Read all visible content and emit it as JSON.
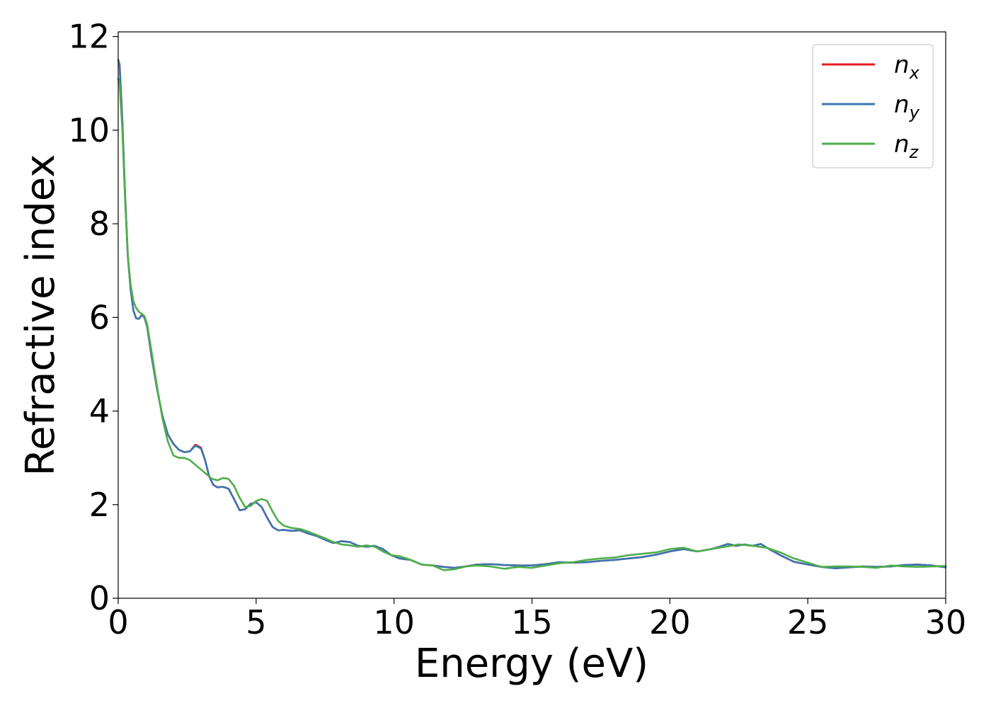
{
  "chart_data": {
    "type": "line",
    "title": "",
    "xlabel": "Energy (eV)",
    "ylabel": "Refractive index",
    "xlim": [
      0,
      30
    ],
    "ylim": [
      0,
      12.1
    ],
    "xticks": [
      0,
      5,
      10,
      15,
      20,
      25,
      30
    ],
    "yticks": [
      0,
      2,
      4,
      6,
      8,
      10,
      12
    ],
    "grid": false,
    "legend_position": "top-right",
    "series": [
      {
        "name": "n_x",
        "legend_base": "n",
        "legend_sub": "x",
        "color": "#e41a1c",
        "x": [
          0,
          0.05,
          0.15,
          0.25,
          0.35,
          0.45,
          0.55,
          0.65,
          0.75,
          0.85,
          0.95,
          1.05,
          1.2,
          1.4,
          1.6,
          1.8,
          2.0,
          2.2,
          2.4,
          2.6,
          2.8,
          3.0,
          3.15,
          3.3,
          3.45,
          3.6,
          3.8,
          4.0,
          4.2,
          4.4,
          4.6,
          4.8,
          5.0,
          5.2,
          5.4,
          5.6,
          5.8,
          6.0,
          6.3,
          6.6,
          6.9,
          7.2,
          7.5,
          7.8,
          8.1,
          8.4,
          8.7,
          9.0,
          9.3,
          9.6,
          9.9,
          10.2,
          10.6,
          11.0,
          11.4,
          11.8,
          12.2,
          12.6,
          13.0,
          13.5,
          14.0,
          14.5,
          15.0,
          15.5,
          16.0,
          16.5,
          17.0,
          17.5,
          18.0,
          18.5,
          19.0,
          19.5,
          20.0,
          20.5,
          21.0,
          21.5,
          21.8,
          22.1,
          22.4,
          22.7,
          23.0,
          23.3,
          23.6,
          24.0,
          24.5,
          25.0,
          25.5,
          26.0,
          26.5,
          27.0,
          27.5,
          28.0,
          28.5,
          29.0,
          29.5,
          30.0
        ],
        "y": [
          11.5,
          11.4,
          10.2,
          8.6,
          7.3,
          6.6,
          6.15,
          5.98,
          5.97,
          6.05,
          6.0,
          5.8,
          5.2,
          4.5,
          3.9,
          3.5,
          3.3,
          3.17,
          3.12,
          3.14,
          3.28,
          3.22,
          2.95,
          2.6,
          2.42,
          2.37,
          2.38,
          2.34,
          2.12,
          1.88,
          1.9,
          2.02,
          2.05,
          1.95,
          1.72,
          1.52,
          1.45,
          1.46,
          1.44,
          1.45,
          1.38,
          1.33,
          1.25,
          1.18,
          1.22,
          1.2,
          1.12,
          1.1,
          1.12,
          1.05,
          0.92,
          0.85,
          0.82,
          0.72,
          0.7,
          0.67,
          0.65,
          0.68,
          0.72,
          0.73,
          0.71,
          0.7,
          0.7,
          0.73,
          0.77,
          0.76,
          0.77,
          0.8,
          0.82,
          0.85,
          0.88,
          0.93,
          1.0,
          1.05,
          1.0,
          1.05,
          1.1,
          1.16,
          1.12,
          1.15,
          1.12,
          1.16,
          1.05,
          0.92,
          0.78,
          0.72,
          0.67,
          0.64,
          0.66,
          0.68,
          0.67,
          0.68,
          0.71,
          0.72,
          0.7,
          0.66
        ]
      },
      {
        "name": "n_y",
        "legend_base": "n",
        "legend_sub": "y",
        "color": "#3a75b0",
        "x": [
          0,
          0.05,
          0.15,
          0.25,
          0.35,
          0.45,
          0.55,
          0.65,
          0.75,
          0.85,
          0.95,
          1.05,
          1.2,
          1.4,
          1.6,
          1.8,
          2.0,
          2.2,
          2.4,
          2.6,
          2.8,
          3.0,
          3.15,
          3.3,
          3.45,
          3.6,
          3.8,
          4.0,
          4.2,
          4.4,
          4.6,
          4.8,
          5.0,
          5.2,
          5.4,
          5.6,
          5.8,
          6.0,
          6.3,
          6.6,
          6.9,
          7.2,
          7.5,
          7.8,
          8.1,
          8.4,
          8.7,
          9.0,
          9.3,
          9.6,
          9.9,
          10.2,
          10.6,
          11.0,
          11.4,
          11.8,
          12.2,
          12.6,
          13.0,
          13.5,
          14.0,
          14.5,
          15.0,
          15.5,
          16.0,
          16.5,
          17.0,
          17.5,
          18.0,
          18.5,
          19.0,
          19.5,
          20.0,
          20.5,
          21.0,
          21.5,
          21.8,
          22.1,
          22.4,
          22.7,
          23.0,
          23.3,
          23.6,
          24.0,
          24.5,
          25.0,
          25.5,
          26.0,
          26.5,
          27.0,
          27.5,
          28.0,
          28.5,
          29.0,
          29.5,
          30.0
        ],
        "y": [
          11.5,
          11.4,
          10.2,
          8.6,
          7.3,
          6.6,
          6.15,
          5.98,
          5.97,
          6.05,
          6.0,
          5.8,
          5.2,
          4.5,
          3.9,
          3.5,
          3.3,
          3.17,
          3.12,
          3.14,
          3.26,
          3.2,
          2.95,
          2.6,
          2.42,
          2.37,
          2.38,
          2.34,
          2.12,
          1.88,
          1.9,
          2.02,
          2.05,
          1.95,
          1.72,
          1.52,
          1.45,
          1.46,
          1.44,
          1.45,
          1.38,
          1.33,
          1.25,
          1.18,
          1.22,
          1.2,
          1.12,
          1.1,
          1.12,
          1.05,
          0.92,
          0.85,
          0.82,
          0.72,
          0.7,
          0.67,
          0.65,
          0.68,
          0.72,
          0.73,
          0.71,
          0.7,
          0.7,
          0.73,
          0.77,
          0.76,
          0.77,
          0.8,
          0.82,
          0.85,
          0.88,
          0.93,
          1.0,
          1.05,
          1.0,
          1.05,
          1.1,
          1.16,
          1.12,
          1.15,
          1.12,
          1.16,
          1.05,
          0.92,
          0.78,
          0.72,
          0.67,
          0.64,
          0.66,
          0.68,
          0.67,
          0.68,
          0.71,
          0.72,
          0.7,
          0.66
        ]
      },
      {
        "name": "n_z",
        "legend_base": "n",
        "legend_sub": "z",
        "color": "#4daf4a",
        "x": [
          0,
          0.05,
          0.15,
          0.25,
          0.35,
          0.45,
          0.55,
          0.65,
          0.75,
          0.85,
          0.95,
          1.05,
          1.2,
          1.4,
          1.6,
          1.8,
          2.0,
          2.2,
          2.4,
          2.6,
          2.8,
          3.0,
          3.2,
          3.4,
          3.6,
          3.8,
          4.0,
          4.2,
          4.4,
          4.6,
          4.8,
          5.0,
          5.2,
          5.4,
          5.6,
          5.8,
          6.0,
          6.3,
          6.6,
          6.9,
          7.2,
          7.5,
          7.8,
          8.1,
          8.4,
          8.7,
          9.0,
          9.3,
          9.6,
          9.9,
          10.2,
          10.6,
          11.0,
          11.4,
          11.8,
          12.2,
          12.6,
          13.0,
          13.5,
          14.0,
          14.5,
          15.0,
          15.5,
          16.0,
          16.5,
          17.0,
          17.5,
          18.0,
          18.5,
          19.0,
          19.5,
          20.0,
          20.5,
          21.0,
          21.5,
          22.0,
          22.5,
          23.0,
          23.5,
          24.0,
          24.5,
          25.0,
          25.5,
          26.0,
          26.5,
          27.0,
          27.5,
          28.0,
          28.5,
          29.0,
          29.5,
          30.0
        ],
        "y": [
          11.1,
          11.0,
          10.0,
          8.5,
          7.3,
          6.7,
          6.35,
          6.2,
          6.12,
          6.08,
          6.03,
          5.85,
          5.3,
          4.55,
          3.85,
          3.35,
          3.05,
          3.0,
          3.0,
          2.95,
          2.85,
          2.75,
          2.65,
          2.55,
          2.52,
          2.57,
          2.55,
          2.4,
          2.15,
          1.95,
          1.97,
          2.08,
          2.12,
          2.08,
          1.85,
          1.65,
          1.55,
          1.5,
          1.48,
          1.42,
          1.35,
          1.28,
          1.2,
          1.15,
          1.13,
          1.1,
          1.13,
          1.1,
          1.0,
          0.92,
          0.9,
          0.82,
          0.72,
          0.7,
          0.6,
          0.62,
          0.68,
          0.7,
          0.68,
          0.63,
          0.67,
          0.65,
          0.7,
          0.75,
          0.77,
          0.82,
          0.85,
          0.87,
          0.92,
          0.95,
          0.98,
          1.05,
          1.08,
          1.0,
          1.05,
          1.1,
          1.15,
          1.12,
          1.08,
          0.98,
          0.85,
          0.76,
          0.67,
          0.68,
          0.68,
          0.67,
          0.65,
          0.7,
          0.68,
          0.67,
          0.68,
          0.69
        ]
      }
    ]
  }
}
